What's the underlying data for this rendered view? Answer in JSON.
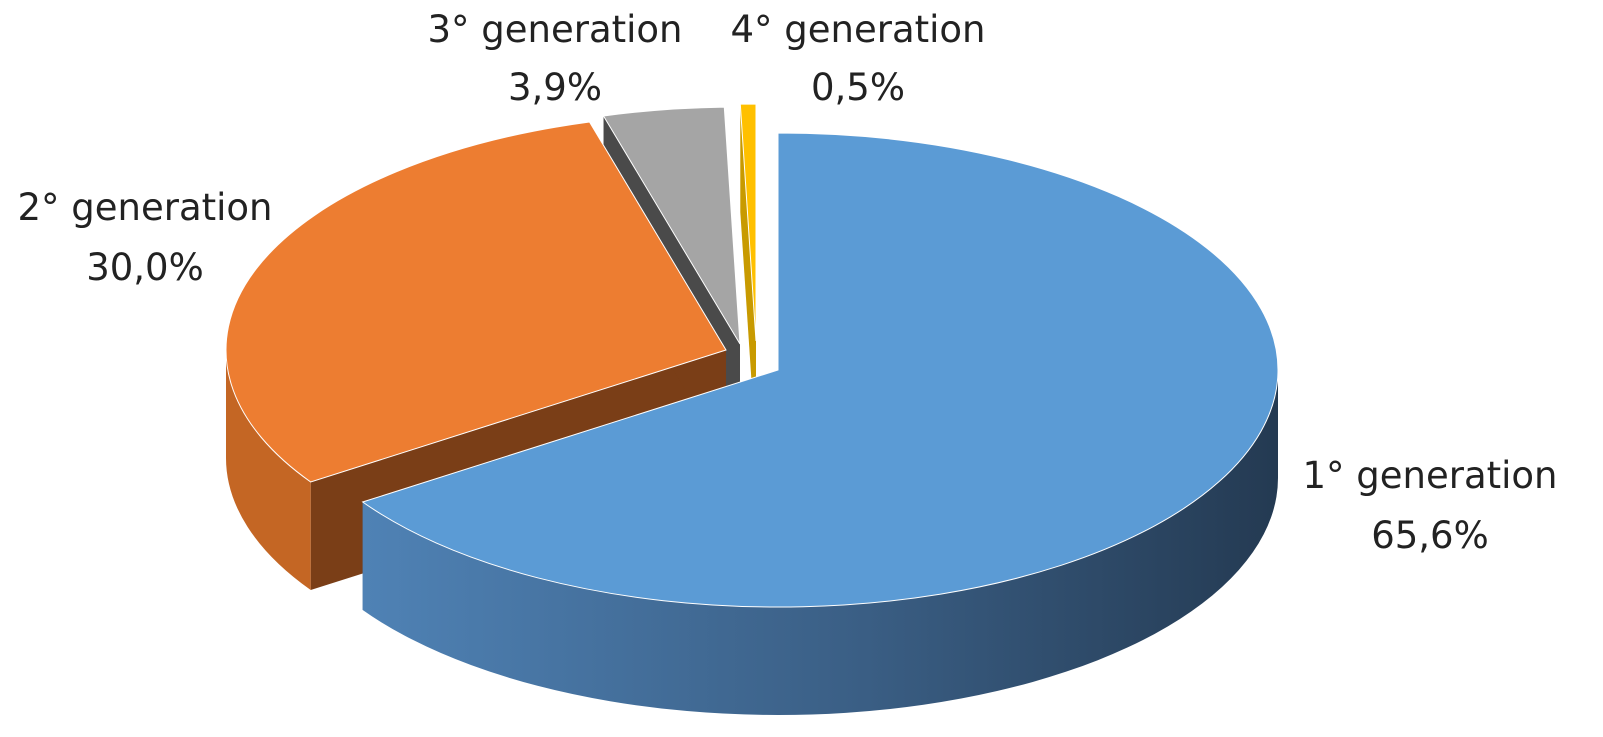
{
  "chart_data": {
    "type": "pie",
    "style": "3d-exploded",
    "title": "",
    "slices": [
      {
        "label": "1° generation",
        "value": 65.6,
        "value_text": "65,6%",
        "color": "#5B9BD5"
      },
      {
        "label": "2° generation",
        "value": 30.0,
        "value_text": "30,0%",
        "color": "#ED7D31"
      },
      {
        "label": "3° generation",
        "value": 3.9,
        "value_text": "3,9%",
        "color": "#A5A5A5"
      },
      {
        "label": "4° generation",
        "value": 0.5,
        "value_text": "0,5%",
        "color": "#FFC000"
      }
    ],
    "legend": "none",
    "data_labels": "outside"
  }
}
